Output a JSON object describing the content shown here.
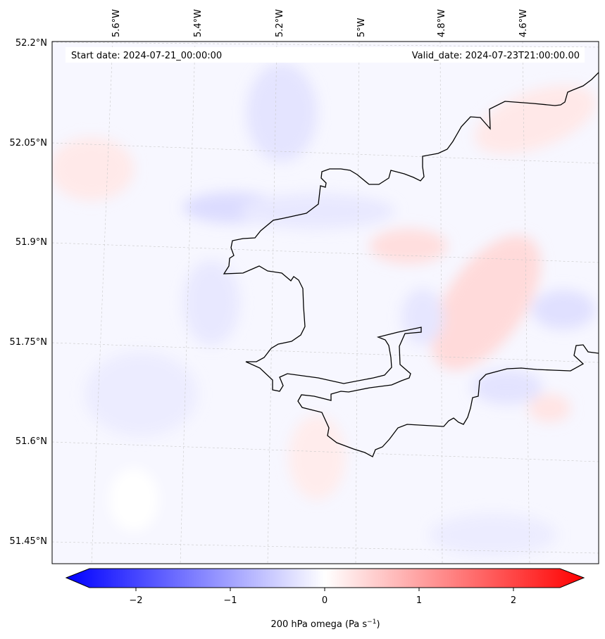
{
  "header": {
    "start_date": "Start date: 2024-07-21_00:00:00",
    "valid_date": "Valid_date: 2024-07-23T21:00:00.00"
  },
  "map": {
    "lon_labels": [
      "5.6°W",
      "5.4°W",
      "5.2°W",
      "5°W",
      "4.8°W",
      "4.6°W"
    ],
    "lat_labels": [
      "52.2°N",
      "52.05°N",
      "51.9°N",
      "51.75°N",
      "51.6°N",
      "51.45°N"
    ],
    "field": "200 hPa omega",
    "colormap": "bwr",
    "colors": {
      "min": "#0000ff",
      "mid": "#ffffff",
      "max": "#ff0000",
      "coastline": "#000000",
      "gridline": "#c8c8c8"
    }
  },
  "colorbar": {
    "ticks": [
      "−2",
      "−1",
      "0",
      "1",
      "2"
    ],
    "label": "200 hPa omega (Pa s",
    "label_unit_exp": "−1",
    "label_close": ")",
    "range": [
      -2.6,
      2.6
    ],
    "extend": "both"
  }
}
